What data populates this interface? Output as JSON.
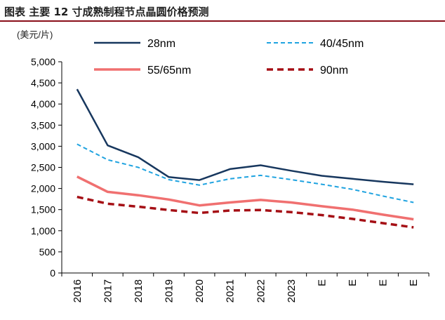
{
  "title": "图表  主要 12 寸成熟制程节点晶圆价格预测",
  "colors": {
    "title_rule": "#8a0f1a",
    "28nm": "#17375e",
    "40/45nm": "#1fa3e0",
    "55/65nm": "#f07070",
    "90nm": "#a50f15"
  },
  "chart_data": {
    "type": "line",
    "unit_label": "(美元/片)",
    "categories": [
      "2016",
      "2017",
      "2018",
      "2019",
      "2020",
      "2021",
      "2022",
      "2023",
      "E",
      "E",
      "E",
      "E"
    ],
    "ylim": [
      0,
      5000
    ],
    "yticks": [
      0,
      500,
      1000,
      1500,
      2000,
      2500,
      3000,
      3500,
      4000,
      4500,
      5000
    ],
    "ytick_labels": [
      "0",
      "500",
      "1,000",
      "1,500",
      "2,000",
      "2,500",
      "3,000",
      "3,500",
      "4,000",
      "4,500",
      "5,000"
    ],
    "grid": false,
    "legend_position": "top",
    "series": [
      {
        "name": "28nm",
        "style": "solid",
        "values": [
          4350,
          3020,
          2740,
          2270,
          2200,
          2460,
          2550,
          2420,
          2300,
          2230,
          2160,
          2100
        ]
      },
      {
        "name": "40/45nm",
        "style": "dashed",
        "values": [
          3050,
          2680,
          2500,
          2210,
          2080,
          2230,
          2310,
          2210,
          2100,
          1980,
          1820,
          1670
        ]
      },
      {
        "name": "55/65nm",
        "style": "solid",
        "values": [
          2280,
          1920,
          1840,
          1740,
          1600,
          1670,
          1730,
          1670,
          1580,
          1500,
          1380,
          1270
        ]
      },
      {
        "name": "90nm",
        "style": "dashed",
        "values": [
          1800,
          1640,
          1570,
          1490,
          1420,
          1480,
          1490,
          1440,
          1370,
          1280,
          1180,
          1080
        ]
      }
    ]
  }
}
